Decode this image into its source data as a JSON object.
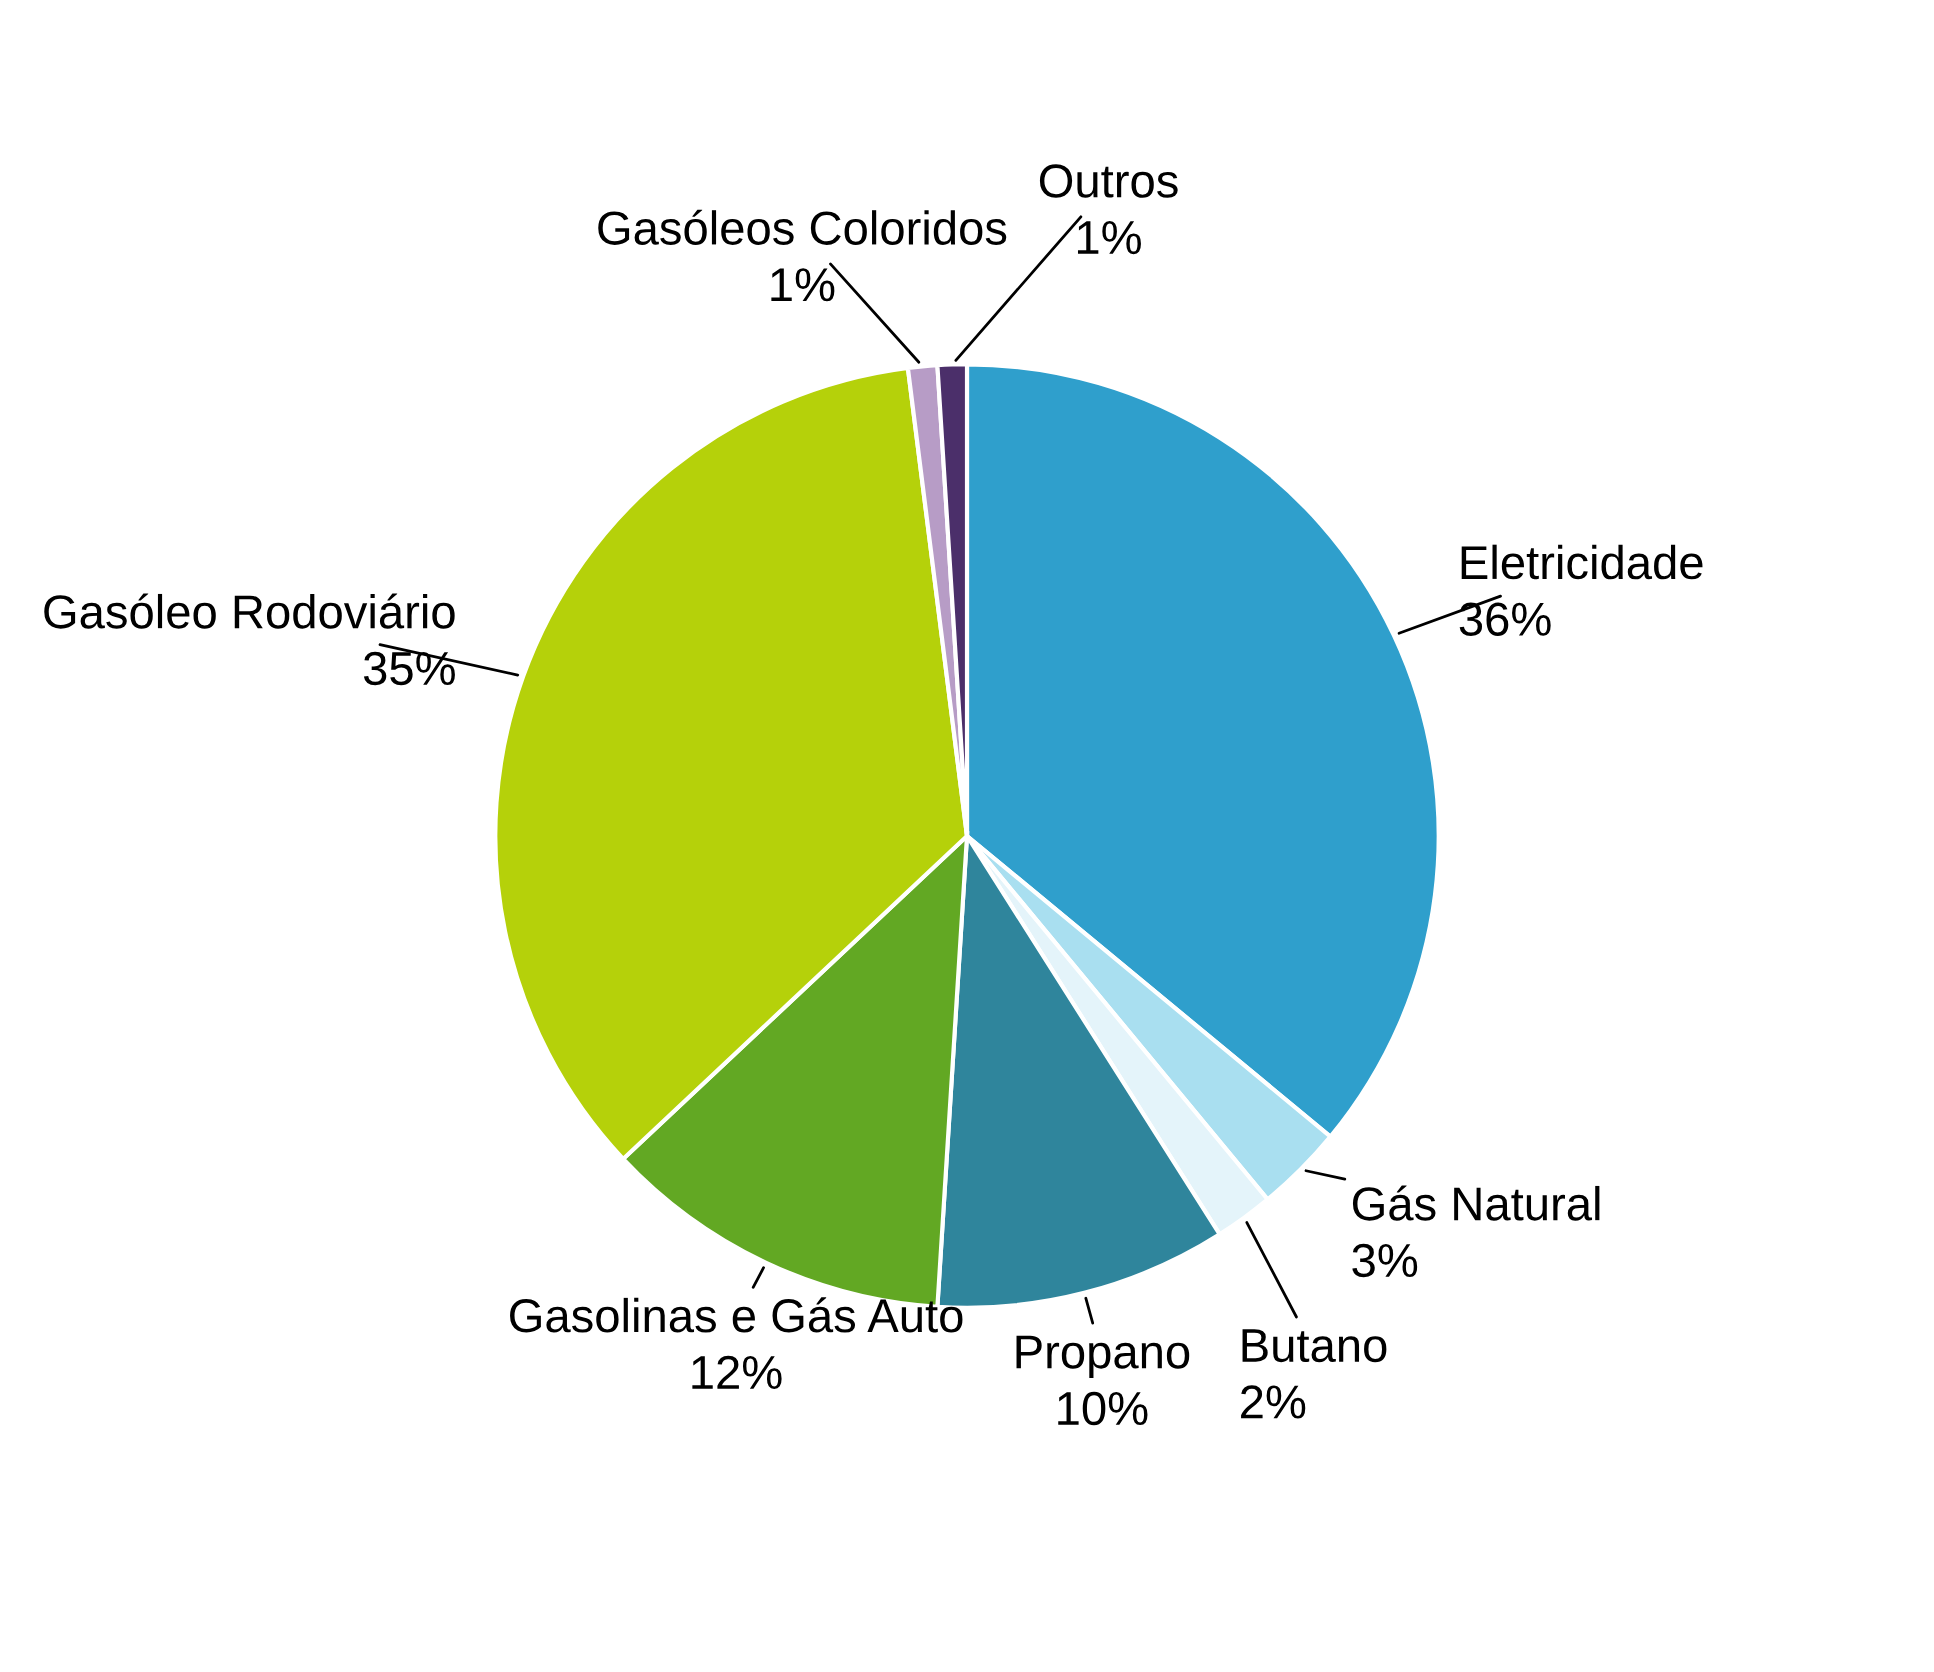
{
  "chart_data": {
    "type": "pie",
    "categories": [
      "Eletricidade",
      "Gás Natural",
      "Butano",
      "Propano",
      "Gasolinas e Gás Auto",
      "Gasóleo Rodoviário",
      "Gasóleos Coloridos",
      "Outros"
    ],
    "values": [
      36,
      3,
      2,
      10,
      12,
      35,
      1,
      1
    ],
    "value_labels": [
      "36%",
      "3%",
      "2%",
      "10%",
      "12%",
      "35%",
      "1%",
      "1%"
    ],
    "colors": [
      "#2f9fcc",
      "#a9dff0",
      "#e4f4fa",
      "#2f859c",
      "#62a823",
      "#b5d10a",
      "#b79cc6",
      "#4b2f6a"
    ]
  }
}
